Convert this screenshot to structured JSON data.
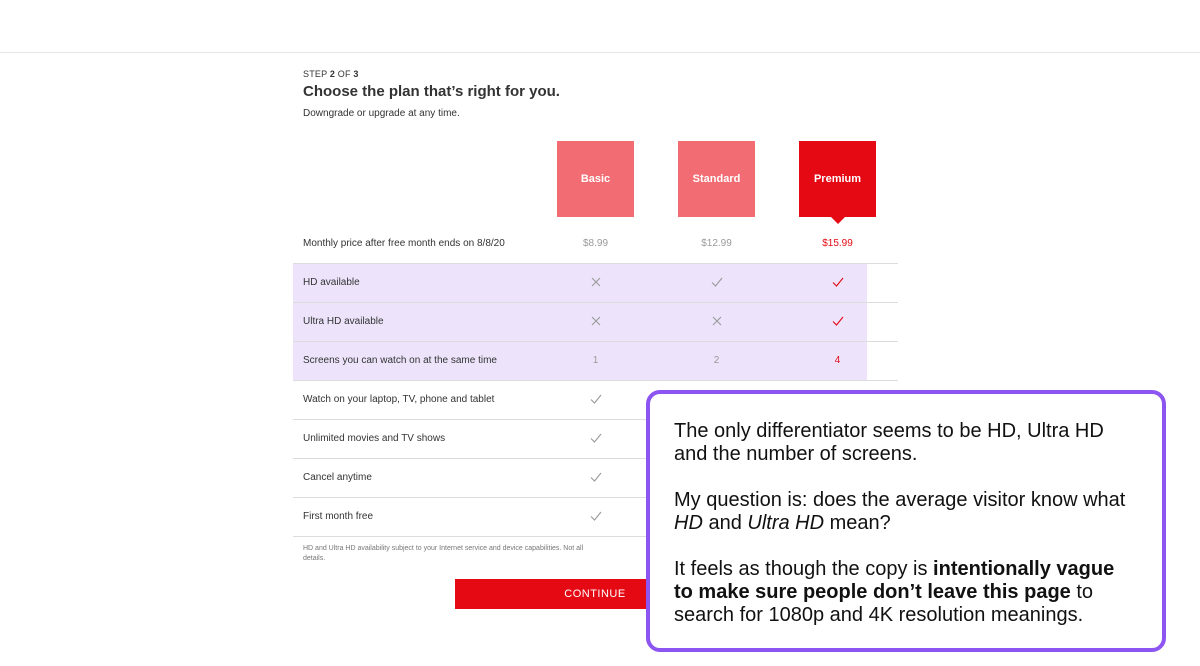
{
  "header": {
    "step_prefix": "STEP ",
    "step_current": "2",
    "step_of": " OF ",
    "step_total": "3",
    "title": "Choose the plan that’s right for you.",
    "subtitle": "Downgrade or upgrade at any time."
  },
  "plans": [
    {
      "name": "Basic",
      "selected": false
    },
    {
      "name": "Standard",
      "selected": false
    },
    {
      "name": "Premium",
      "selected": true
    }
  ],
  "rows": [
    {
      "label": "Monthly price after free month ends on 8/8/20",
      "values": [
        "$8.99",
        "$12.99",
        "$15.99"
      ]
    },
    {
      "label": "HD available",
      "values": [
        "x-icon",
        "check-icon",
        "check-icon"
      ]
    },
    {
      "label": "Ultra HD available",
      "values": [
        "x-icon",
        "x-icon",
        "check-icon"
      ]
    },
    {
      "label": "Screens you can watch on at the same time",
      "values": [
        "1",
        "2",
        "4"
      ]
    },
    {
      "label": "Watch on your laptop, TV, phone and tablet",
      "values": [
        "check-icon",
        "",
        ""
      ]
    },
    {
      "label": "Unlimited movies and TV shows",
      "values": [
        "check-icon",
        "",
        ""
      ]
    },
    {
      "label": "Cancel anytime",
      "values": [
        "check-icon",
        "",
        ""
      ]
    },
    {
      "label": "First month free",
      "values": [
        "check-icon",
        "",
        ""
      ]
    }
  ],
  "footnote": "HD and Ultra HD availability subject to your Internet service and device capabilities. Not all\ndetails.",
  "continue_label": "CONTINUE",
  "callout": {
    "p1": "The only differentiator seems to be HD, Ultra HD and the number of screens.",
    "p2_a": "My question is: does the average visitor know what ",
    "p2_hd": "HD",
    "p2_and": " and ",
    "p2_uhd": "Ultra HD",
    "p2_b": " mean?",
    "p3_a": "It feels as though the copy is ",
    "p3_bold": "intentionally vague to make sure people don’t leave this page",
    "p3_b": " to search for 1080p and 4K resolution meanings."
  },
  "colors": {
    "brand_red": "#e50914",
    "plan_unselected": "#f26d73",
    "highlight": "#ede4fb",
    "callout_border": "#8c54f0"
  }
}
